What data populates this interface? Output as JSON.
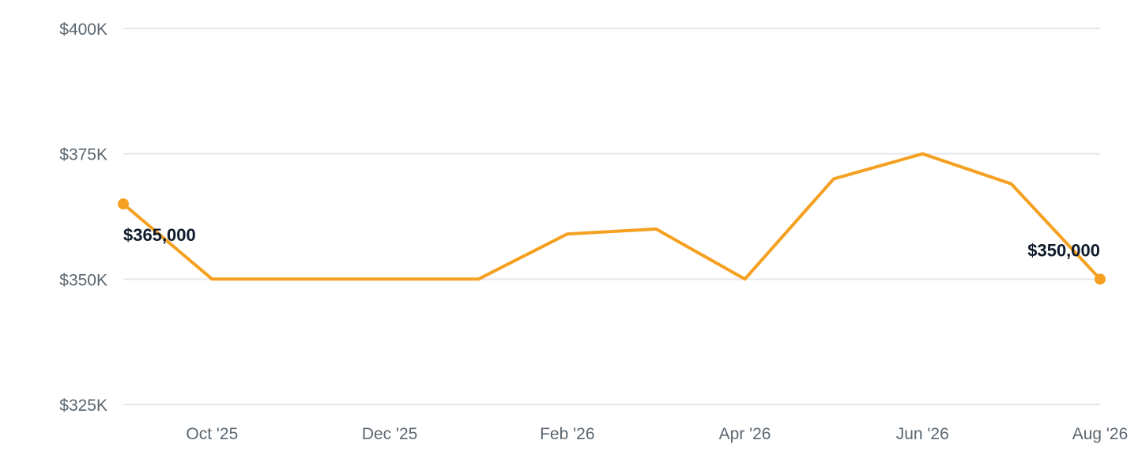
{
  "chart_data": {
    "type": "line",
    "x": [
      "2025-09",
      "2025-10",
      "2025-11",
      "2025-12",
      "2026-01",
      "2026-02",
      "2026-03",
      "2026-04",
      "2026-05",
      "2026-06",
      "2026-07",
      "2026-08"
    ],
    "series": [
      {
        "values": [
          365000,
          350000,
          350000,
          350000,
          350000,
          359000,
          360000,
          350000,
          370000,
          375000,
          369000,
          350000
        ],
        "color": "#f5a020"
      }
    ],
    "ylim": [
      325000,
      400000
    ],
    "y_ticks": [
      {
        "value": 400000,
        "label": "$400K"
      },
      {
        "value": 375000,
        "label": "$375K"
      },
      {
        "value": 350000,
        "label": "$350K"
      },
      {
        "value": 325000,
        "label": "$325K"
      }
    ],
    "x_ticks": [
      {
        "x": "2025-10",
        "label": "Oct '25"
      },
      {
        "x": "2025-12",
        "label": "Dec '25"
      },
      {
        "x": "2026-02",
        "label": "Feb '26"
      },
      {
        "x": "2026-04",
        "label": "Apr '26"
      },
      {
        "x": "2026-06",
        "label": "Jun '26"
      },
      {
        "x": "2026-08",
        "label": "Aug '26"
      }
    ],
    "data_labels": [
      {
        "x": "2025-09",
        "text": "$365,000"
      },
      {
        "x": "2026-08",
        "text": "$350,000"
      }
    ],
    "grid": true,
    "legend": "none"
  }
}
